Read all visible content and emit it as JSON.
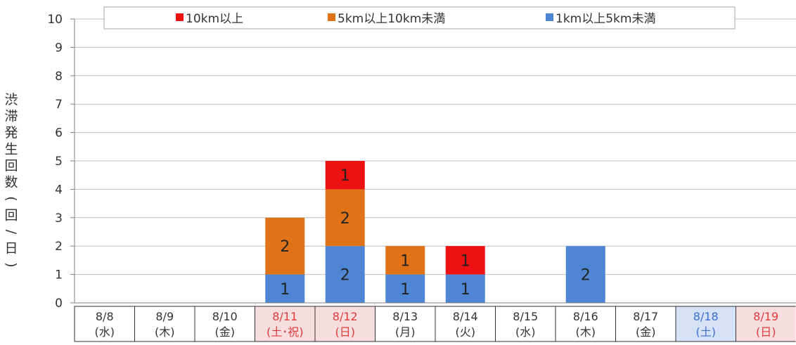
{
  "chart_data": {
    "type": "bar",
    "stacked": true,
    "ylabel": "渋滞発生回数(回/日)",
    "ylim": [
      0,
      10
    ],
    "yticks": [
      "0",
      "1",
      "2",
      "3",
      "4",
      "5",
      "6",
      "7",
      "8",
      "9",
      "10"
    ],
    "grid": true,
    "legend_position": "top",
    "categories": [
      {
        "date": "8/8",
        "dow": "(水)",
        "color": "#333333",
        "bg": "#ffffff"
      },
      {
        "date": "8/9",
        "dow": "(木)",
        "color": "#333333",
        "bg": "#ffffff"
      },
      {
        "date": "8/10",
        "dow": "(金)",
        "color": "#333333",
        "bg": "#ffffff"
      },
      {
        "date": "8/11",
        "dow": "(土･祝)",
        "color": "#e03c3c",
        "bg": "#f8dede"
      },
      {
        "date": "8/12",
        "dow": "(日)",
        "color": "#e03c3c",
        "bg": "#f8dede"
      },
      {
        "date": "8/13",
        "dow": "(月)",
        "color": "#333333",
        "bg": "#ffffff"
      },
      {
        "date": "8/14",
        "dow": "(火)",
        "color": "#333333",
        "bg": "#ffffff"
      },
      {
        "date": "8/15",
        "dow": "(水)",
        "color": "#333333",
        "bg": "#ffffff"
      },
      {
        "date": "8/16",
        "dow": "(木)",
        "color": "#333333",
        "bg": "#ffffff"
      },
      {
        "date": "8/17",
        "dow": "(金)",
        "color": "#333333",
        "bg": "#ffffff"
      },
      {
        "date": "8/18",
        "dow": "(土)",
        "color": "#3b6fd6",
        "bg": "#d6e2f7"
      },
      {
        "date": "8/19",
        "dow": "(日)",
        "color": "#e03c3c",
        "bg": "#f8dede"
      }
    ],
    "series": [
      {
        "name": "1km以上5km未満",
        "color": "#4e86d4",
        "values": [
          0,
          0,
          0,
          1,
          2,
          1,
          1,
          0,
          2,
          0,
          0,
          0
        ]
      },
      {
        "name": "5km以上10km未満",
        "color": "#e07318",
        "values": [
          0,
          0,
          0,
          2,
          2,
          1,
          0,
          0,
          0,
          0,
          0,
          0
        ]
      },
      {
        "name": "10km以上",
        "color": "#ee1111",
        "values": [
          0,
          0,
          0,
          0,
          1,
          0,
          1,
          0,
          0,
          0,
          0,
          0
        ]
      }
    ],
    "legend_order": [
      2,
      1,
      0
    ]
  }
}
